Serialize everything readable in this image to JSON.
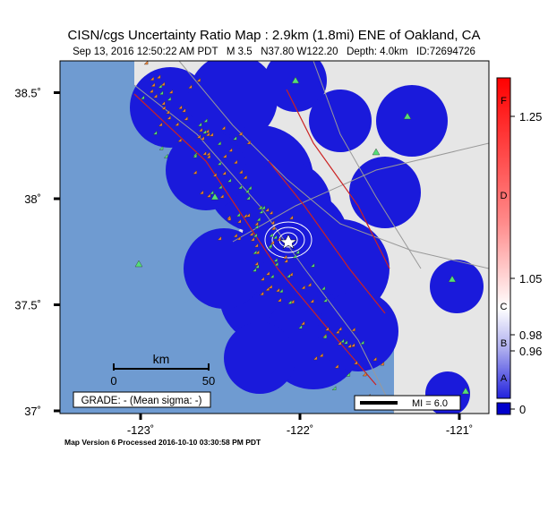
{
  "map": {
    "title": "CISN/cgs Uncertainty Ratio Map : 2.9km (1.8mi) ENE of Oakland, CA",
    "subtitle": "Sep 13, 2016 12:50:22 AM PDT   M 3.5   N37.80 W122.20   Depth: 4.0km   ID:72694726",
    "lat_ticks": [
      {
        "value": 38.5,
        "label": "38.5˚"
      },
      {
        "value": 38,
        "label": "38˚"
      },
      {
        "value": 37.5,
        "label": "37.5˚"
      },
      {
        "value": 37,
        "label": "37˚"
      }
    ],
    "lon_ticks": [
      {
        "value": -123,
        "label": "-123˚"
      },
      {
        "value": -122,
        "label": "-122˚"
      },
      {
        "value": -121,
        "label": "-121˚"
      }
    ],
    "scale_bar": {
      "unit": "km",
      "ticks": [
        0,
        50
      ]
    },
    "grade_box": "GRADE: - (Mean sigma: -)",
    "mi_label": "MI = 6.0",
    "colorbar": {
      "ticks": [
        1.25,
        1.05,
        0.98,
        0.96,
        0
      ],
      "grades": [
        "F",
        "D",
        "C",
        "B",
        "A"
      ]
    },
    "footer": "Map Version 6 Processed 2016-10-10 03:30:58 PM PDT"
  }
}
